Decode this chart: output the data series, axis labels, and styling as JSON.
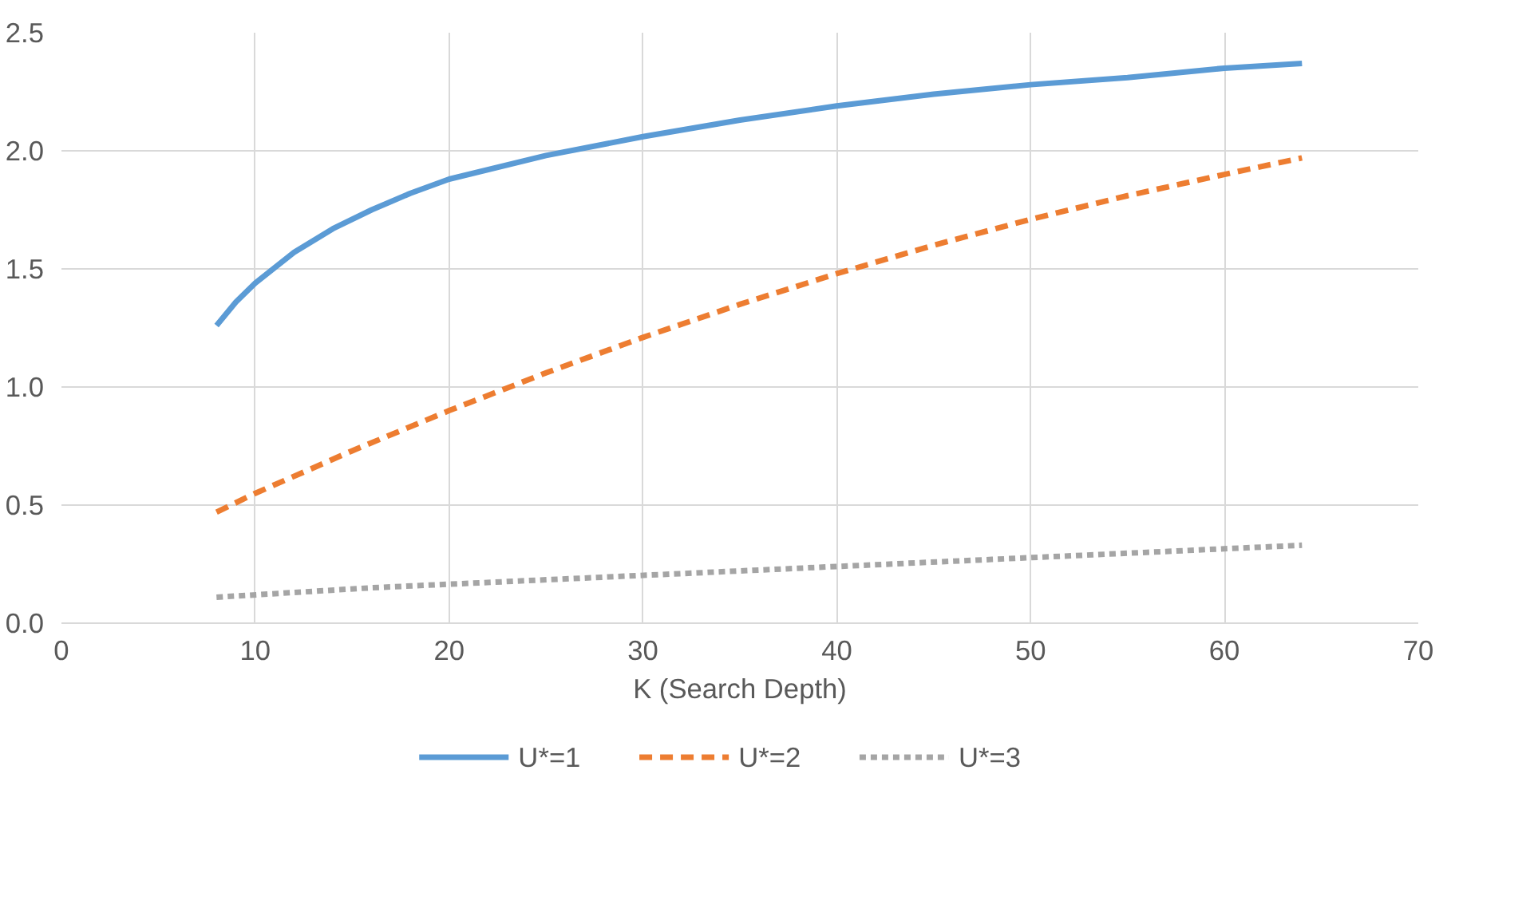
{
  "chart_data": {
    "type": "line",
    "xlabel": "K (Search Depth)",
    "xlim": [
      0,
      70
    ],
    "xticks": [
      0,
      10,
      20,
      30,
      40,
      50,
      60,
      70
    ],
    "ylim": [
      0,
      2.5
    ],
    "yticks": [
      {
        "value": 0,
        "label": "0.0"
      },
      {
        "value": 0.5,
        "label": "0.5"
      },
      {
        "value": 1,
        "label": "1.0"
      },
      {
        "value": 1.5,
        "label": "1.5"
      },
      {
        "value": 2,
        "label": "2.0"
      },
      {
        "value": 2.5,
        "label": "2.5"
      }
    ],
    "grid": true,
    "legend": "bottom",
    "series": [
      {
        "name": "U*=1",
        "color": "#5b9bd5",
        "line_style": "solid",
        "x": [
          8,
          9,
          10,
          12,
          14,
          16,
          18,
          20,
          25,
          30,
          35,
          40,
          45,
          50,
          55,
          60,
          64
        ],
        "values": [
          1.26,
          1.36,
          1.44,
          1.57,
          1.67,
          1.75,
          1.82,
          1.88,
          1.98,
          2.06,
          2.13,
          2.19,
          2.24,
          2.28,
          2.31,
          2.35,
          2.37
        ]
      },
      {
        "name": "U*=2",
        "color": "#ed7d31",
        "line_style": "dashed",
        "x": [
          8,
          10,
          15,
          20,
          25,
          30,
          35,
          40,
          45,
          50,
          55,
          60,
          64
        ],
        "values": [
          0.47,
          0.55,
          0.73,
          0.9,
          1.06,
          1.21,
          1.35,
          1.48,
          1.6,
          1.71,
          1.81,
          1.9,
          1.97
        ]
      },
      {
        "name": "U*=3",
        "color": "#a5a5a5",
        "line_style": "dotted",
        "x": [
          8,
          16,
          24,
          32,
          40,
          48,
          56,
          64
        ],
        "values": [
          0.11,
          0.15,
          0.18,
          0.21,
          0.24,
          0.27,
          0.3,
          0.33
        ]
      }
    ]
  }
}
